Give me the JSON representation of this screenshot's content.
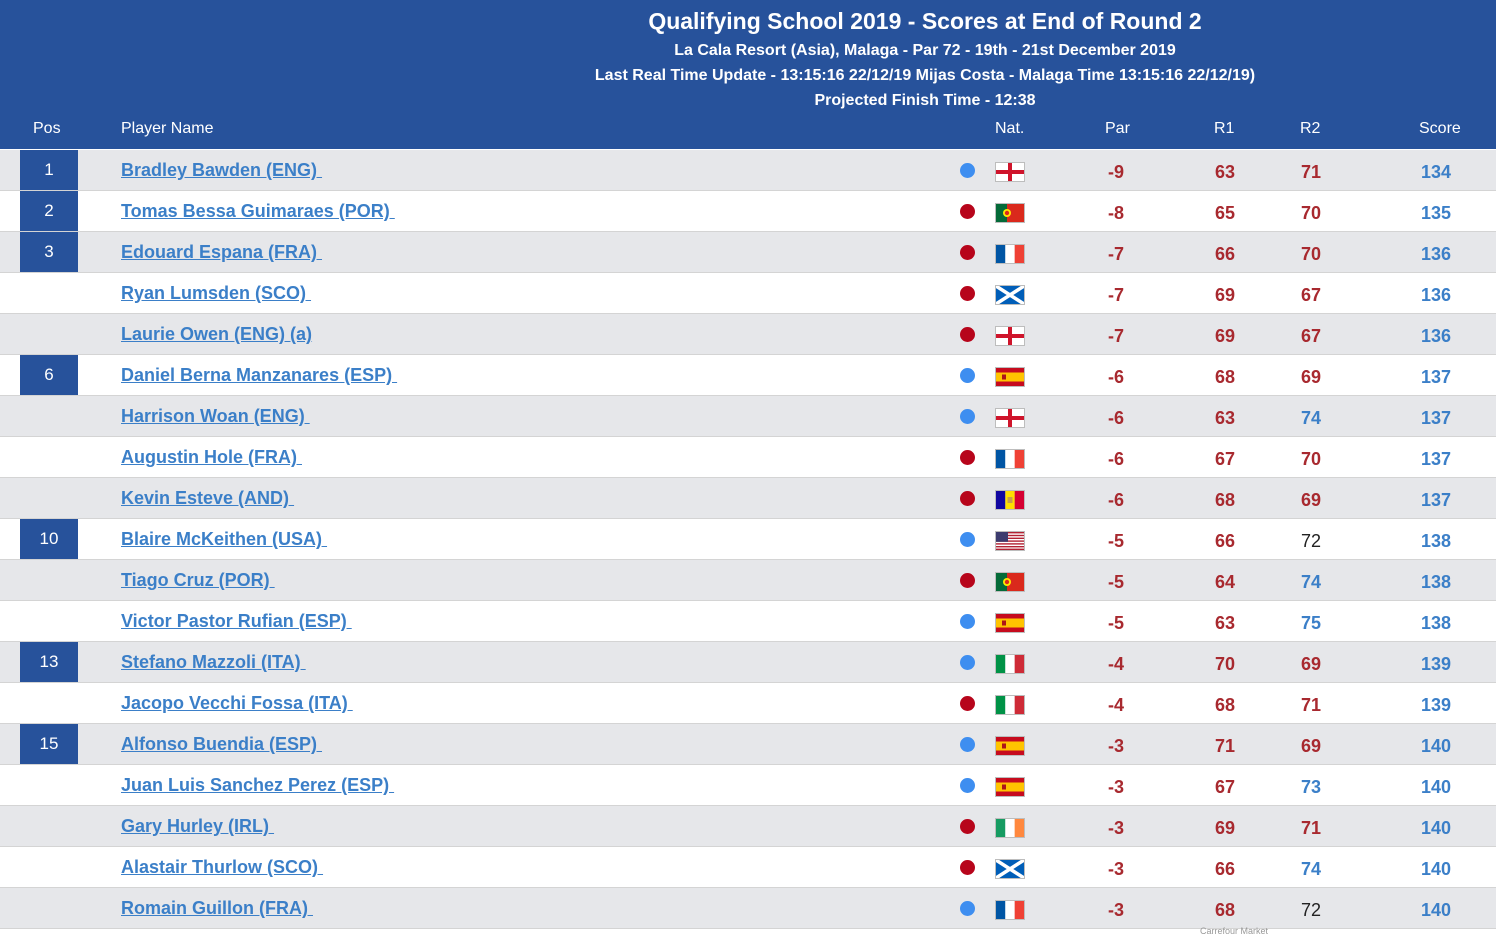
{
  "header": {
    "title": "Qualifying School 2019 - Scores at End of Round 2",
    "line1": "La Cala Resort (Asia), Malaga - Par 72 - 19th - 21st December 2019",
    "line2": "Last Real Time Update - 13:15:16 22/12/19 Mijas Costa - Malaga Time 13:15:16 22/12/19)",
    "line3": "Projected Finish Time - 12:38"
  },
  "columns": {
    "pos": "Pos",
    "player": "Player Name",
    "nat": "Nat.",
    "par": "Par",
    "r1": "R1",
    "r2": "R2",
    "score": "Score"
  },
  "colors": {
    "header_bg": "#27529b",
    "row_alt": "#e6e7ea",
    "link": "#3b7fc8",
    "red_score": "#a8292f",
    "dot_blue": "#3e8ef0",
    "dot_red": "#b7051b"
  },
  "rows": [
    {
      "pos": "1",
      "name": "Bradley Bawden (ENG) ",
      "dot": "blue",
      "flag": "england",
      "par": "-9",
      "r1": "63",
      "r2": "71",
      "r2_style": "red",
      "score": "134"
    },
    {
      "pos": "2",
      "name": "Tomas Bessa Guimaraes (POR) ",
      "dot": "red",
      "flag": "portugal",
      "par": "-8",
      "r1": "65",
      "r2": "70",
      "r2_style": "red",
      "score": "135"
    },
    {
      "pos": "3",
      "name": "Edouard Espana (FRA) ",
      "dot": "red",
      "flag": "france",
      "par": "-7",
      "r1": "66",
      "r2": "70",
      "r2_style": "red",
      "score": "136"
    },
    {
      "pos": "",
      "name": "Ryan Lumsden (SCO) ",
      "dot": "red",
      "flag": "scotland",
      "par": "-7",
      "r1": "69",
      "r2": "67",
      "r2_style": "red",
      "score": "136"
    },
    {
      "pos": "",
      "name": "Laurie Owen (ENG) (a)",
      "dot": "red",
      "flag": "england",
      "par": "-7",
      "r1": "69",
      "r2": "67",
      "r2_style": "red",
      "score": "136"
    },
    {
      "pos": "6",
      "name": "Daniel Berna Manzanares (ESP) ",
      "dot": "blue",
      "flag": "spain",
      "par": "-6",
      "r1": "68",
      "r2": "69",
      "r2_style": "red",
      "score": "137"
    },
    {
      "pos": "",
      "name": "Harrison Woan (ENG) ",
      "dot": "blue",
      "flag": "england",
      "par": "-6",
      "r1": "63",
      "r2": "74",
      "r2_style": "blue",
      "score": "137"
    },
    {
      "pos": "",
      "name": "Augustin Hole (FRA) ",
      "dot": "red",
      "flag": "france",
      "par": "-6",
      "r1": "67",
      "r2": "70",
      "r2_style": "red",
      "score": "137"
    },
    {
      "pos": "",
      "name": "Kevin Esteve (AND) ",
      "dot": "red",
      "flag": "andorra",
      "par": "-6",
      "r1": "68",
      "r2": "69",
      "r2_style": "red",
      "score": "137"
    },
    {
      "pos": "10",
      "name": "Blaire McKeithen (USA) ",
      "dot": "blue",
      "flag": "usa",
      "par": "-5",
      "r1": "66",
      "r2": "72",
      "r2_style": "black",
      "score": "138"
    },
    {
      "pos": "",
      "name": "Tiago Cruz (POR) ",
      "dot": "red",
      "flag": "portugal",
      "par": "-5",
      "r1": "64",
      "r2": "74",
      "r2_style": "blue",
      "score": "138"
    },
    {
      "pos": "",
      "name": "Victor Pastor Rufian (ESP) ",
      "dot": "blue",
      "flag": "spain",
      "par": "-5",
      "r1": "63",
      "r2": "75",
      "r2_style": "blue",
      "score": "138"
    },
    {
      "pos": "13",
      "name": "Stefano Mazzoli (ITA) ",
      "dot": "blue",
      "flag": "italy",
      "par": "-4",
      "r1": "70",
      "r2": "69",
      "r2_style": "red",
      "score": "139"
    },
    {
      "pos": "",
      "name": "Jacopo Vecchi Fossa (ITA) ",
      "dot": "red",
      "flag": "italy",
      "par": "-4",
      "r1": "68",
      "r2": "71",
      "r2_style": "red",
      "score": "139"
    },
    {
      "pos": "15",
      "name": "Alfonso Buendia (ESP) ",
      "dot": "blue",
      "flag": "spain",
      "par": "-3",
      "r1": "71",
      "r2": "69",
      "r2_style": "red",
      "score": "140"
    },
    {
      "pos": "",
      "name": "Juan Luis Sanchez Perez (ESP) ",
      "dot": "blue",
      "flag": "spain",
      "par": "-3",
      "r1": "67",
      "r2": "73",
      "r2_style": "blue",
      "score": "140"
    },
    {
      "pos": "",
      "name": "Gary Hurley (IRL) ",
      "dot": "red",
      "flag": "ireland",
      "par": "-3",
      "r1": "69",
      "r2": "71",
      "r2_style": "red",
      "score": "140"
    },
    {
      "pos": "",
      "name": "Alastair Thurlow (SCO) ",
      "dot": "red",
      "flag": "scotland",
      "par": "-3",
      "r1": "66",
      "r2": "74",
      "r2_style": "blue",
      "score": "140"
    },
    {
      "pos": "",
      "name": "Romain Guillon (FRA) ",
      "dot": "blue",
      "flag": "france",
      "par": "-3",
      "r1": "68",
      "r2": "72",
      "r2_style": "black",
      "score": "140"
    }
  ],
  "footer_text": "Carrefour Market"
}
